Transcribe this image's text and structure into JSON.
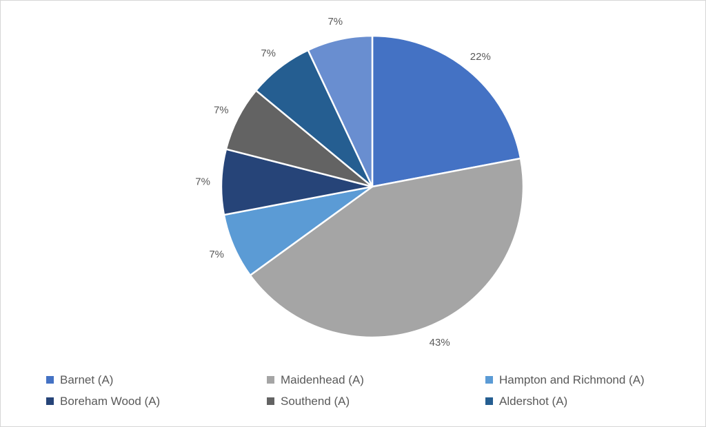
{
  "chart_data": {
    "type": "pie",
    "title": "",
    "unit": "percent",
    "start_angle_deg": 0,
    "direction": "clockwise",
    "slices": [
      {
        "name": "Barnet (A)",
        "value": 22,
        "label": "22%",
        "color": "#4472C4",
        "in_legend": true
      },
      {
        "name": "Maidenhead (A)",
        "value": 43,
        "label": "43%",
        "color": "#A5A5A5",
        "in_legend": true
      },
      {
        "name": "Hampton and Richmond (A)",
        "value": 7,
        "label": "7%",
        "color": "#5B9BD5",
        "in_legend": true
      },
      {
        "name": "Boreham Wood (A)",
        "value": 7,
        "label": "7%",
        "color": "#264478",
        "in_legend": true
      },
      {
        "name": "Southend (A)",
        "value": 7,
        "label": "7%",
        "color": "#636363",
        "in_legend": true
      },
      {
        "name": "Aldershot (A)",
        "value": 7,
        "label": "7%",
        "color": "#255E91",
        "in_legend": true
      },
      {
        "name": "",
        "value": 7,
        "label": "7%",
        "color": "#698ED0",
        "in_legend": false
      }
    ],
    "legend": {
      "position": "bottom",
      "columns": 3,
      "entries": [
        "Barnet (A)",
        "Maidenhead (A)",
        "Hampton and Richmond (A)",
        "Boreham Wood (A)",
        "Southend (A)",
        "Aldershot (A)"
      ]
    },
    "styles": {
      "data_label_color": "#595959",
      "legend_text_color": "#595959",
      "slice_border_color": "#FFFFFF",
      "frame_border_color": "#D6D6D6",
      "background": "#FFFFFF"
    }
  }
}
